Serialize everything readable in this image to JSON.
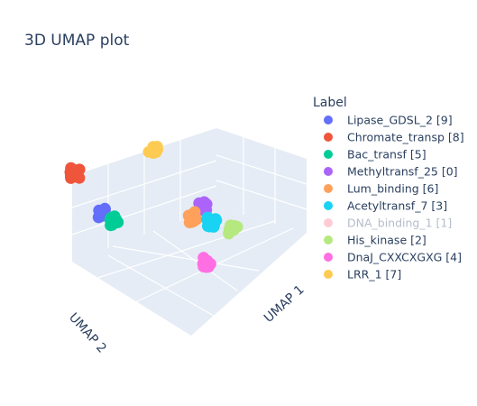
{
  "chart_data": {
    "type": "scatter3d",
    "title": "3D UMAP plot",
    "legend_title": "Label",
    "legend_position": "right",
    "axes": {
      "x_label": "UMAP 1",
      "y_label": "UMAP 2"
    },
    "series": [
      {
        "name": "Lipase_GDSL_2 [9]",
        "color": "#636efa",
        "visible": true,
        "cluster": [
          -2.6,
          0.9,
          -0.2
        ]
      },
      {
        "name": "Chromate_transp [8]",
        "color": "#ef553b",
        "visible": true,
        "cluster": [
          -1.9,
          3.1,
          0.6
        ]
      },
      {
        "name": "Bac_transf [5]",
        "color": "#00cc96",
        "visible": true,
        "cluster": [
          -2.4,
          0.6,
          -0.3
        ]
      },
      {
        "name": "Methyltransf_25 [0]",
        "color": "#ab63fa",
        "visible": true,
        "cluster": [
          1.2,
          1.1,
          1.0
        ]
      },
      {
        "name": "Lum_binding [6]",
        "color": "#ffa15a",
        "visible": true,
        "cluster": [
          1.0,
          1.2,
          0.5
        ]
      },
      {
        "name": "Acetyltransf_7 [3]",
        "color": "#19d3f3",
        "visible": true,
        "cluster": [
          1.5,
          1.0,
          0.5
        ]
      },
      {
        "name": "DNA_binding_1 [1]",
        "color": "#ff97ab",
        "visible": false,
        "cluster": [
          1.3,
          1.1,
          0.6
        ]
      },
      {
        "name": "His_kinase [2]",
        "color": "#b6e880",
        "visible": true,
        "cluster": [
          2.0,
          0.6,
          0.5
        ]
      },
      {
        "name": "DnaJ_CXXCXGXG [4]",
        "color": "#ff6fe3",
        "visible": true,
        "cluster": [
          -1.2,
          -2.2,
          -0.4
        ]
      },
      {
        "name": "LRR_1 [7]",
        "color": "#fecb52",
        "visible": true,
        "cluster": [
          0.6,
          2.6,
          2.4
        ]
      }
    ]
  }
}
